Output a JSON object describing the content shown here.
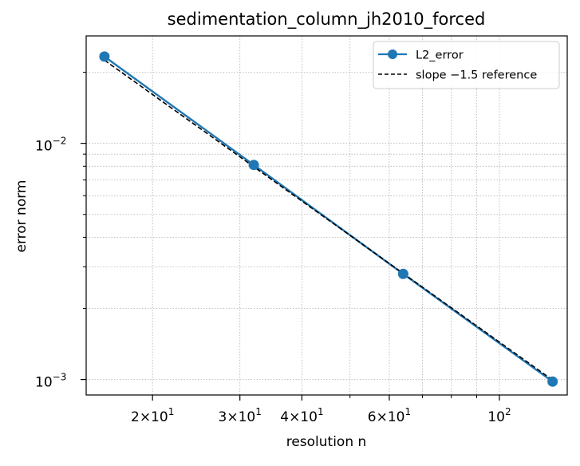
{
  "chart_data": {
    "type": "line",
    "title": "sedimentation_column_jh2010_forced",
    "xlabel": "resolution n",
    "ylabel": "error norm",
    "x_scale": "log",
    "y_scale": "log",
    "xlim": [
      14.7,
      137
    ],
    "ylim": [
      0.00086,
      0.0285
    ],
    "grid": true,
    "legend_position": "top-right",
    "x_major_ticks": [
      {
        "value": 20,
        "label_base": "2×10",
        "label_exp": "1"
      },
      {
        "value": 30,
        "label_base": "3×10",
        "label_exp": "1"
      },
      {
        "value": 40,
        "label_base": "4×10",
        "label_exp": "1"
      },
      {
        "value": 60,
        "label_base": "6×10",
        "label_exp": "1"
      },
      {
        "value": 100,
        "label_base": "10",
        "label_exp": "2"
      }
    ],
    "x_minor_ticks": [
      50,
      70,
      80,
      90
    ],
    "y_major_ticks": [
      {
        "value": 0.001,
        "label_base": "10",
        "label_exp": "−3"
      },
      {
        "value": 0.01,
        "label_base": "10",
        "label_exp": "−2"
      }
    ],
    "y_minor_ticks": [
      0.002,
      0.003,
      0.004,
      0.005,
      0.006,
      0.007,
      0.008,
      0.009,
      0.02
    ],
    "series": [
      {
        "name": "L2_error",
        "color": "#1f77b4",
        "style": "solid",
        "marker": "circle",
        "x": [
          16,
          32,
          64,
          128
        ],
        "y": [
          0.0233,
          0.0081,
          0.0028,
          0.00098
        ]
      },
      {
        "name": "slope −1.5 reference",
        "color": "#000000",
        "style": "dashed",
        "marker": "none",
        "x": [
          16,
          128
        ],
        "y": [
          0.0225,
          0.000995
        ]
      }
    ]
  }
}
